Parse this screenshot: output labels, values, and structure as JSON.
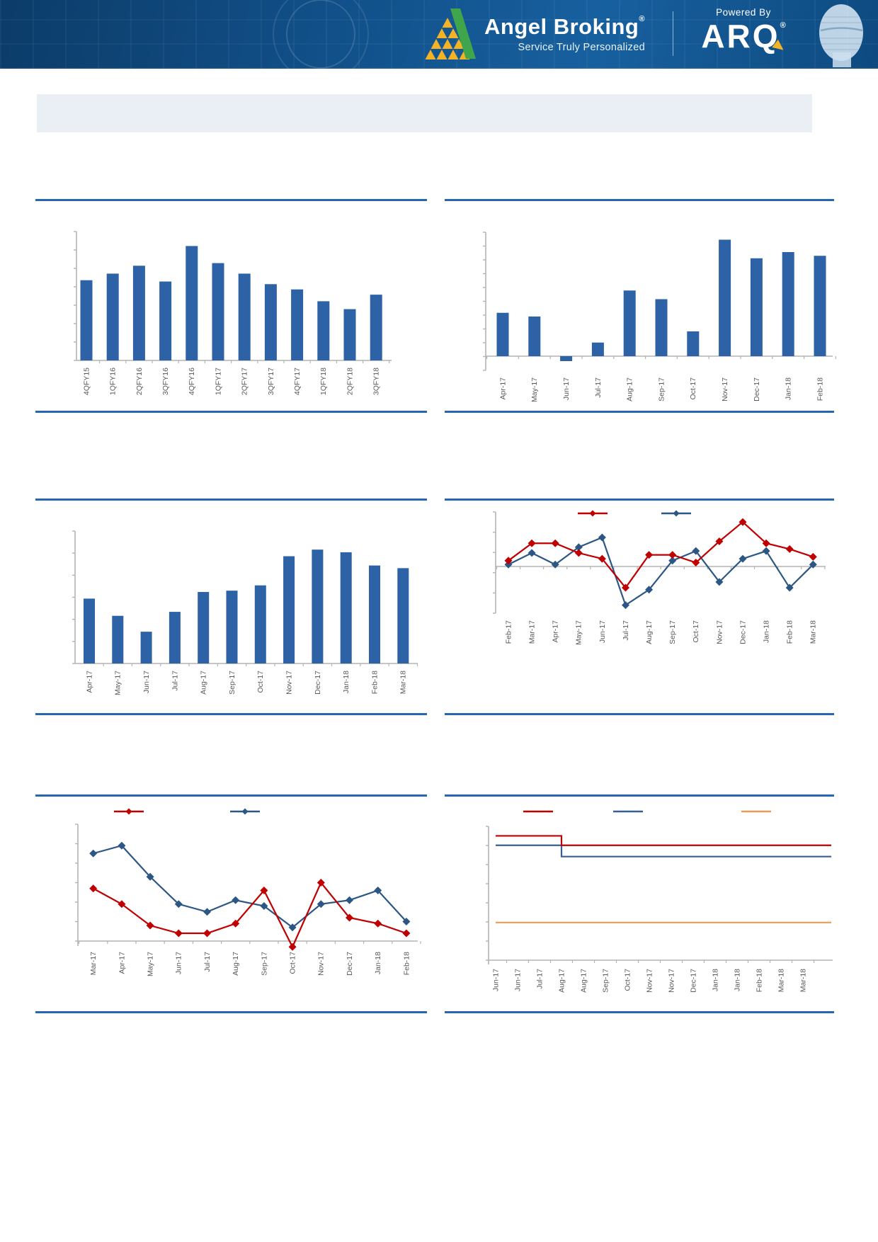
{
  "banner": {
    "brand_name": "Angel Broking",
    "brand_reg": "®",
    "tagline": "Service Truly Personalized",
    "powered_by": "Powered By",
    "product_name": "ARQ",
    "product_reg": "®",
    "colors": {
      "banner_blue": "#115089",
      "logo_yellow": "#f4b324",
      "logo_green": "#3fa64c",
      "rule_blue": "#2767b1"
    }
  },
  "title_box": {
    "text": ""
  },
  "chart_data": [
    {
      "id": "c1",
      "name": "quarterly-bar-chart",
      "type": "bar",
      "title": "",
      "categories": [
        "4QFY15",
        "1QFY16",
        "2QFY16",
        "3QFY16",
        "4QFY16",
        "1QFY17",
        "2QFY17",
        "3QFY17",
        "4QFY17",
        "1QFY18",
        "2QFY18",
        "3QFY18"
      ],
      "values": [
        61,
        66,
        72,
        60,
        87,
        74,
        66,
        58,
        54,
        45,
        39,
        50
      ],
      "bar_color": "#2e62a6",
      "ylim": [
        0,
        98
      ],
      "grid": false,
      "y_tick_labels": []
    },
    {
      "id": "c2",
      "name": "monthly-bar-chart-top-right",
      "type": "bar",
      "title": "",
      "categories": [
        "Apr-17",
        "May-17",
        "Jun-17",
        "Jul-17",
        "Aug-17",
        "Sep-17",
        "Oct-17",
        "Nov-17",
        "Dec-17",
        "Jan-18",
        "Feb-18"
      ],
      "values": [
        35,
        32,
        -4,
        11,
        53,
        46,
        20,
        94,
        79,
        84,
        81
      ],
      "bar_color": "#2e62a6",
      "ylim": [
        -11,
        100
      ],
      "grid": false,
      "y_tick_labels": []
    },
    {
      "id": "c3",
      "name": "monthly-bar-chart-middle-left",
      "type": "bar",
      "title": "",
      "categories": [
        "Apr-17",
        "May-17",
        "Jun-17",
        "Jul-17",
        "Aug-17",
        "Sep-17",
        "Oct-17",
        "Nov-17",
        "Dec-17",
        "Jan-18",
        "Feb-18",
        "Mar-18"
      ],
      "values": [
        49,
        36,
        24,
        39,
        54,
        55,
        59,
        81,
        86,
        84,
        74,
        72
      ],
      "bar_color": "#2e62a6",
      "ylim": [
        0,
        100
      ],
      "grid": false,
      "y_tick_labels": []
    },
    {
      "id": "c4",
      "name": "two-series-line-chart-middle-right",
      "type": "line",
      "title": "",
      "x": [
        "Feb-17",
        "Mar-17",
        "Apr-17",
        "May-17",
        "Jun-17",
        "Jul-17",
        "Aug-17",
        "Sep-17",
        "Oct-17",
        "Nov-17",
        "Dec-17",
        "Jan-18",
        "Feb-18",
        "Mar-18"
      ],
      "series": [
        {
          "name": "series-blue",
          "color": "#2c5784",
          "values": [
            0.1,
            0.7,
            0.1,
            1.0,
            1.5,
            -2.0,
            -1.2,
            0.3,
            0.8,
            -0.8,
            0.4,
            0.8,
            -1.1,
            0.1
          ]
        },
        {
          "name": "series-red",
          "color": "#c00000",
          "values": [
            0.3,
            1.2,
            1.2,
            0.7,
            0.4,
            -1.1,
            0.6,
            0.6,
            0.2,
            1.3,
            2.3,
            1.2,
            0.9,
            0.5
          ]
        }
      ],
      "ylim": [
        -2.4,
        2.8
      ],
      "zero_line": true,
      "legend": {
        "position": "top",
        "labels": [
          "",
          ""
        ]
      }
    },
    {
      "id": "c5",
      "name": "two-series-line-chart-bottom-left",
      "type": "line",
      "title": "",
      "x": [
        "Mar-17",
        "Apr-17",
        "May-17",
        "Jun-17",
        "Jul-17",
        "Aug-17",
        "Sep-17",
        "Oct-17",
        "Nov-17",
        "Dec-17",
        "Jan-18",
        "Feb-18"
      ],
      "series": [
        {
          "name": "series-blue",
          "color": "#2c5784",
          "values": [
            4.5,
            4.9,
            3.3,
            1.9,
            1.5,
            2.1,
            1.8,
            0.7,
            1.9,
            2.1,
            2.6,
            1.0
          ]
        },
        {
          "name": "series-red",
          "color": "#c00000",
          "values": [
            2.7,
            1.9,
            0.8,
            0.4,
            0.4,
            0.9,
            2.6,
            -0.3,
            3.0,
            1.2,
            0.9,
            0.4
          ]
        }
      ],
      "ylim": [
        -0.25,
        6.0
      ],
      "zero_line": false,
      "legend": {
        "position": "top",
        "labels": [
          "",
          ""
        ]
      }
    },
    {
      "id": "c6",
      "name": "three-series-step-line-chart-bottom-right",
      "type": "line",
      "step": true,
      "title": "",
      "x": [
        "Jun-17",
        "Jun-17",
        "Jul-17",
        "Aug-17",
        "Aug-17",
        "Sep-17",
        "Oct-17",
        "Nov-17",
        "Nov-17",
        "Dec-17",
        "Jan-18",
        "Jan-18",
        "Feb-18",
        "Mar-18",
        "Mar-18"
      ],
      "series": [
        {
          "name": "series-orange",
          "color": "#e99c55",
          "values": [
            2.0,
            2.0,
            2.0,
            2.0,
            2.0,
            2.0,
            2.0,
            2.0,
            2.0,
            2.0,
            2.0,
            2.0,
            2.0,
            2.0,
            2.0
          ]
        },
        {
          "name": "series-blue",
          "color": "#376092",
          "values": [
            6.1,
            6.1,
            6.1,
            5.5,
            5.5,
            5.5,
            5.5,
            5.5,
            5.5,
            5.5,
            5.5,
            5.5,
            5.5,
            5.5,
            5.5
          ]
        },
        {
          "name": "series-red",
          "color": "#c00000",
          "values": [
            6.6,
            6.6,
            6.6,
            6.1,
            6.1,
            6.1,
            6.1,
            6.1,
            6.1,
            6.1,
            6.1,
            6.1,
            6.1,
            6.1,
            6.1
          ]
        }
      ],
      "ylim": [
        0,
        7.1
      ],
      "zero_line": false,
      "legend": {
        "position": "top",
        "labels": [
          "",
          "",
          ""
        ]
      }
    }
  ]
}
